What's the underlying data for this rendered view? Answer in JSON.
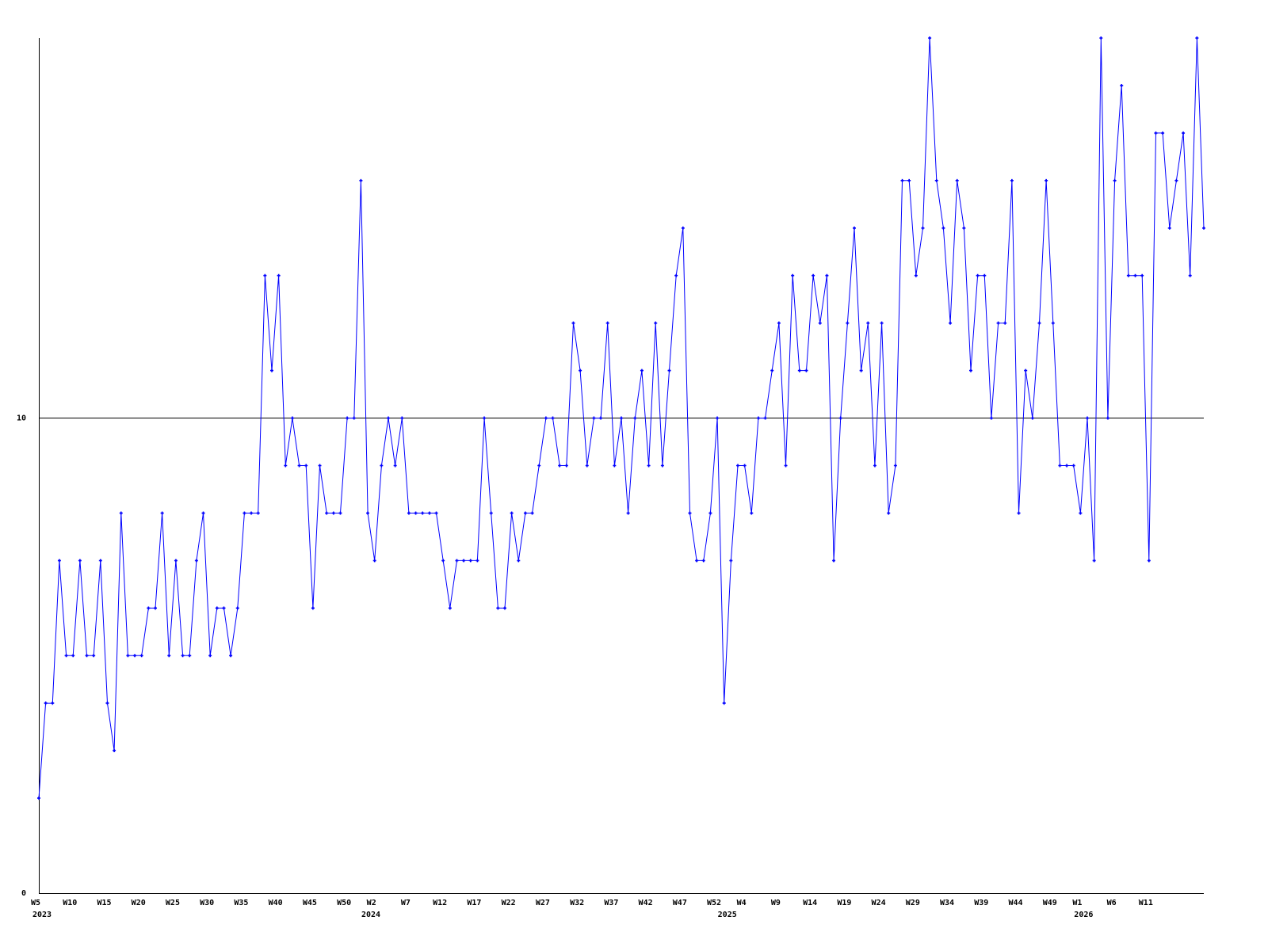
{
  "chart_data": {
    "type": "line",
    "title": "",
    "xlabel": "",
    "ylabel": "",
    "ylim": [
      0,
      18
    ],
    "yticks": [
      {
        "value": 0,
        "label": "0"
      },
      {
        "value": 10,
        "label": "10"
      }
    ],
    "reference_line": 10,
    "grid": false,
    "colors": {
      "series": "#0000ff",
      "axis": "#000000"
    },
    "x": [
      "2023-W5",
      "2023-W6",
      "2023-W7",
      "2023-W8",
      "2023-W9",
      "2023-W10",
      "2023-W11",
      "2023-W12",
      "2023-W13",
      "2023-W14",
      "2023-W15",
      "2023-W16",
      "2023-W17",
      "2023-W18",
      "2023-W19",
      "2023-W20",
      "2023-W21",
      "2023-W22",
      "2023-W23",
      "2023-W24",
      "2023-W25",
      "2023-W26",
      "2023-W27",
      "2023-W28",
      "2023-W29",
      "2023-W30",
      "2023-W31",
      "2023-W32",
      "2023-W33",
      "2023-W34",
      "2023-W35",
      "2023-W36",
      "2023-W37",
      "2023-W38",
      "2023-W39",
      "2023-W40",
      "2023-W41",
      "2023-W42",
      "2023-W43",
      "2023-W44",
      "2023-W45",
      "2023-W46",
      "2023-W47",
      "2023-W48",
      "2023-W49",
      "2023-W50",
      "2023-W51",
      "2023-W52",
      "2024-W1",
      "2024-W2",
      "2024-W3",
      "2024-W4",
      "2024-W5",
      "2024-W6",
      "2024-W7",
      "2024-W8",
      "2024-W9",
      "2024-W10",
      "2024-W11",
      "2024-W12",
      "2024-W13",
      "2024-W14",
      "2024-W15",
      "2024-W16",
      "2024-W17",
      "2024-W18",
      "2024-W19",
      "2024-W20",
      "2024-W21",
      "2024-W22",
      "2024-W23",
      "2024-W24",
      "2024-W25",
      "2024-W26",
      "2024-W27",
      "2024-W28",
      "2024-W29",
      "2024-W30",
      "2024-W31",
      "2024-W32",
      "2024-W33",
      "2024-W34",
      "2024-W35",
      "2024-W36",
      "2024-W37",
      "2024-W38",
      "2024-W39",
      "2024-W40",
      "2024-W41",
      "2024-W42",
      "2024-W43",
      "2024-W44",
      "2024-W45",
      "2024-W46",
      "2024-W47",
      "2024-W48",
      "2024-W49",
      "2024-W50",
      "2024-W51",
      "2024-W52",
      "2025-W1",
      "2025-W2",
      "2025-W3",
      "2025-W4",
      "2025-W5",
      "2025-W6",
      "2025-W7",
      "2025-W8",
      "2025-W9",
      "2025-W10",
      "2025-W11",
      "2025-W12",
      "2025-W13",
      "2025-W14",
      "2025-W15",
      "2025-W16",
      "2025-W17",
      "2025-W18",
      "2025-W19",
      "2025-W20",
      "2025-W21",
      "2025-W22",
      "2025-W23",
      "2025-W24",
      "2025-W25",
      "2025-W26",
      "2025-W27",
      "2025-W28",
      "2025-W29",
      "2025-W30",
      "2025-W31",
      "2025-W32",
      "2025-W33",
      "2025-W34",
      "2025-W35",
      "2025-W36",
      "2025-W37",
      "2025-W38",
      "2025-W39",
      "2025-W40",
      "2025-W41",
      "2025-W42",
      "2025-W43",
      "2025-W44",
      "2025-W45",
      "2025-W46",
      "2025-W47",
      "2025-W48",
      "2025-W49",
      "2025-W50",
      "2025-W51",
      "2025-W52",
      "2026-W1",
      "2026-W2",
      "2026-W3",
      "2026-W4",
      "2026-W5",
      "2026-W6",
      "2026-W7",
      "2026-W8",
      "2026-W9",
      "2026-W10",
      "2026-W11",
      "2026-W12",
      "2026-W13",
      "2026-W14",
      "2026-W15",
      "2026-W16",
      "2026-W17",
      "2026-W18",
      "2026-W19"
    ],
    "series": [
      {
        "values": [
          2,
          4,
          4,
          7,
          5,
          5,
          7,
          5,
          5,
          7,
          4,
          3,
          8,
          5,
          5,
          5,
          6,
          6,
          8,
          5,
          7,
          5,
          5,
          7,
          8,
          5,
          6,
          6,
          5,
          6,
          8,
          8,
          8,
          13,
          11,
          13,
          9,
          10,
          9,
          9,
          6,
          9,
          8,
          8,
          8,
          10,
          10,
          15,
          8,
          7,
          9,
          10,
          9,
          10,
          8,
          8,
          8,
          8,
          8,
          7,
          6,
          7,
          7,
          7,
          7,
          10,
          8,
          6,
          6,
          8,
          7,
          8,
          8,
          9,
          10,
          10,
          9,
          9,
          12,
          11,
          9,
          10,
          10,
          12,
          9,
          10,
          8,
          10,
          11,
          9,
          12,
          9,
          11,
          13,
          14,
          8,
          7,
          7,
          8,
          10,
          4,
          7,
          9,
          9,
          8,
          10,
          10,
          11,
          12,
          9,
          13,
          11,
          11,
          13,
          12,
          13,
          7,
          10,
          12,
          14,
          11,
          12,
          9,
          12,
          8,
          9,
          15,
          15,
          13,
          14,
          18,
          15,
          14,
          12,
          15,
          14,
          11,
          13,
          13,
          10,
          12,
          12,
          15,
          8,
          11,
          10,
          12,
          15,
          12,
          9,
          9,
          9,
          8,
          10,
          7,
          18,
          10,
          15,
          17,
          13,
          13,
          13,
          7,
          16,
          16,
          14,
          15,
          16,
          13,
          18,
          14
        ]
      }
    ],
    "xticks": [
      {
        "x": "2023-W5",
        "label": "W5"
      },
      {
        "x": "2023-W10",
        "label": "W10"
      },
      {
        "x": "2023-W15",
        "label": "W15"
      },
      {
        "x": "2023-W20",
        "label": "W20"
      },
      {
        "x": "2023-W25",
        "label": "W25"
      },
      {
        "x": "2023-W30",
        "label": "W30"
      },
      {
        "x": "2023-W35",
        "label": "W35"
      },
      {
        "x": "2023-W40",
        "label": "W40"
      },
      {
        "x": "2023-W45",
        "label": "W45"
      },
      {
        "x": "2023-W50",
        "label": "W50"
      },
      {
        "x": "2024-W2",
        "label": "W2"
      },
      {
        "x": "2024-W7",
        "label": "W7"
      },
      {
        "x": "2024-W12",
        "label": "W12"
      },
      {
        "x": "2024-W17",
        "label": "W17"
      },
      {
        "x": "2024-W22",
        "label": "W22"
      },
      {
        "x": "2024-W27",
        "label": "W27"
      },
      {
        "x": "2024-W32",
        "label": "W32"
      },
      {
        "x": "2024-W37",
        "label": "W37"
      },
      {
        "x": "2024-W42",
        "label": "W42"
      },
      {
        "x": "2024-W47",
        "label": "W47"
      },
      {
        "x": "2024-W52",
        "label": "W52"
      },
      {
        "x": "2025-W4",
        "label": "W4"
      },
      {
        "x": "2025-W9",
        "label": "W9"
      },
      {
        "x": "2025-W14",
        "label": "W14"
      },
      {
        "x": "2025-W19",
        "label": "W19"
      },
      {
        "x": "2025-W24",
        "label": "W24"
      },
      {
        "x": "2025-W29",
        "label": "W29"
      },
      {
        "x": "2025-W34",
        "label": "W34"
      },
      {
        "x": "2025-W39",
        "label": "W39"
      },
      {
        "x": "2025-W44",
        "label": "W44"
      },
      {
        "x": "2025-W49",
        "label": "W49"
      },
      {
        "x": "2026-W1",
        "label": "W1"
      },
      {
        "x": "2026-W6",
        "label": "W6"
      },
      {
        "x": "2026-W11",
        "label": "W11"
      }
    ],
    "year_labels": [
      {
        "x": "2023-W5",
        "label": "2023"
      },
      {
        "x": "2024-W1",
        "label": "2024"
      },
      {
        "x": "2025-W1",
        "label": "2025"
      },
      {
        "x": "2026-W1",
        "label": "2026"
      }
    ]
  }
}
